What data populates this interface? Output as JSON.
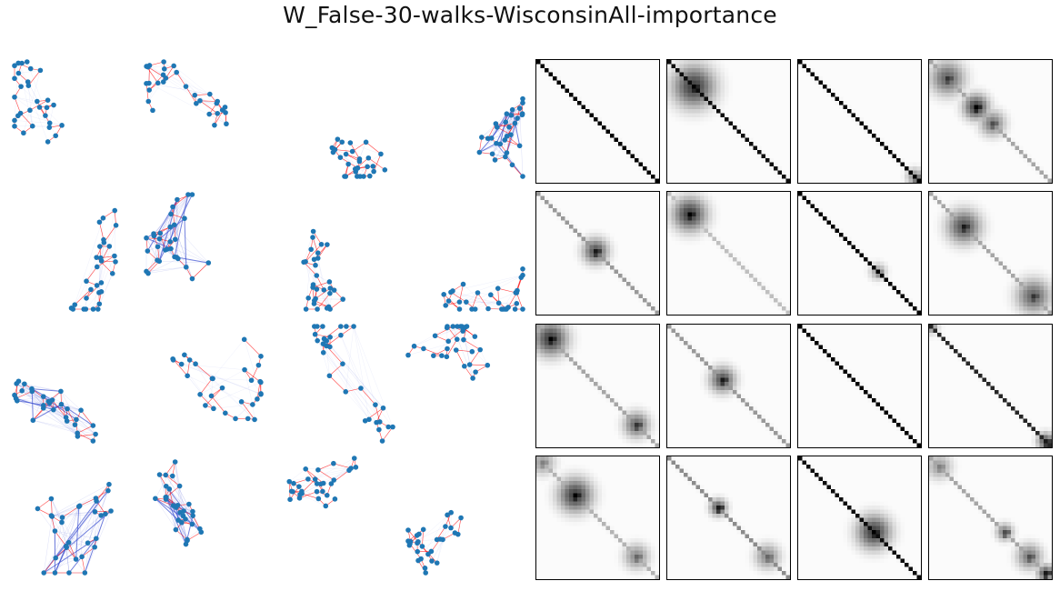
{
  "figure": {
    "title": "W_False-30-walks-WisconsinAll-importance",
    "node_color": "#1f77b4",
    "walk_edge_color": "#ff0000",
    "importance_edge_color": "#3b4fd0",
    "matrix_colormap": "gray_r"
  },
  "graph_grid": {
    "rows": 4,
    "cols": 4,
    "nodes_per_graph": 30
  },
  "matrix_grid": {
    "rows": 4,
    "cols": 4,
    "size": 30,
    "panels": [
      {
        "diag": 1.0,
        "blobs": []
      },
      {
        "diag": 0.95,
        "blobs": [
          {
            "c": 6,
            "r": 5,
            "w": 1.0
          }
        ]
      },
      {
        "diag": 1.0,
        "blobs": [
          {
            "c": 28,
            "r": 2,
            "w": 0.6
          }
        ]
      },
      {
        "diag": 0.35,
        "blobs": [
          {
            "c": 4,
            "r": 4,
            "w": 0.8
          },
          {
            "c": 11,
            "r": 3,
            "w": 1.0
          },
          {
            "c": 15,
            "r": 3,
            "w": 0.7
          }
        ]
      },
      {
        "diag": 0.4,
        "blobs": [
          {
            "c": 14,
            "r": 3,
            "w": 0.9
          }
        ]
      },
      {
        "diag": 0.25,
        "blobs": [
          {
            "c": 5,
            "r": 4,
            "w": 1.0
          }
        ]
      },
      {
        "diag": 1.0,
        "blobs": [
          {
            "c": 19,
            "r": 2,
            "w": 0.5
          }
        ]
      },
      {
        "diag": 0.35,
        "blobs": [
          {
            "c": 8,
            "r": 4,
            "w": 0.9
          },
          {
            "c": 25,
            "r": 4,
            "w": 0.8
          }
        ]
      },
      {
        "diag": 0.35,
        "blobs": [
          {
            "c": 3,
            "r": 4,
            "w": 1.0
          },
          {
            "c": 24,
            "r": 3,
            "w": 0.8
          }
        ]
      },
      {
        "diag": 0.4,
        "blobs": [
          {
            "c": 13,
            "r": 3,
            "w": 0.9
          }
        ]
      },
      {
        "diag": 1.0,
        "blobs": []
      },
      {
        "diag": 0.85,
        "blobs": [
          {
            "c": 0,
            "r": 2,
            "w": 0.4
          },
          {
            "c": 28,
            "r": 2,
            "w": 0.9
          }
        ]
      },
      {
        "diag": 0.3,
        "blobs": [
          {
            "c": 1,
            "r": 3,
            "w": 0.5
          },
          {
            "c": 9,
            "r": 4,
            "w": 1.0
          },
          {
            "c": 24,
            "r": 3,
            "w": 0.6
          }
        ]
      },
      {
        "diag": 0.45,
        "blobs": [
          {
            "c": 12,
            "r": 2,
            "w": 0.9
          },
          {
            "c": 24,
            "r": 3,
            "w": 0.6
          }
        ]
      },
      {
        "diag": 0.95,
        "blobs": [
          {
            "c": 18,
            "r": 4,
            "w": 1.0
          }
        ]
      },
      {
        "diag": 0.35,
        "blobs": [
          {
            "c": 2,
            "r": 3,
            "w": 0.5
          },
          {
            "c": 18,
            "r": 2,
            "w": 0.7
          },
          {
            "c": 24,
            "r": 3,
            "w": 0.7
          },
          {
            "c": 28,
            "r": 2,
            "w": 0.9
          }
        ]
      }
    ]
  }
}
